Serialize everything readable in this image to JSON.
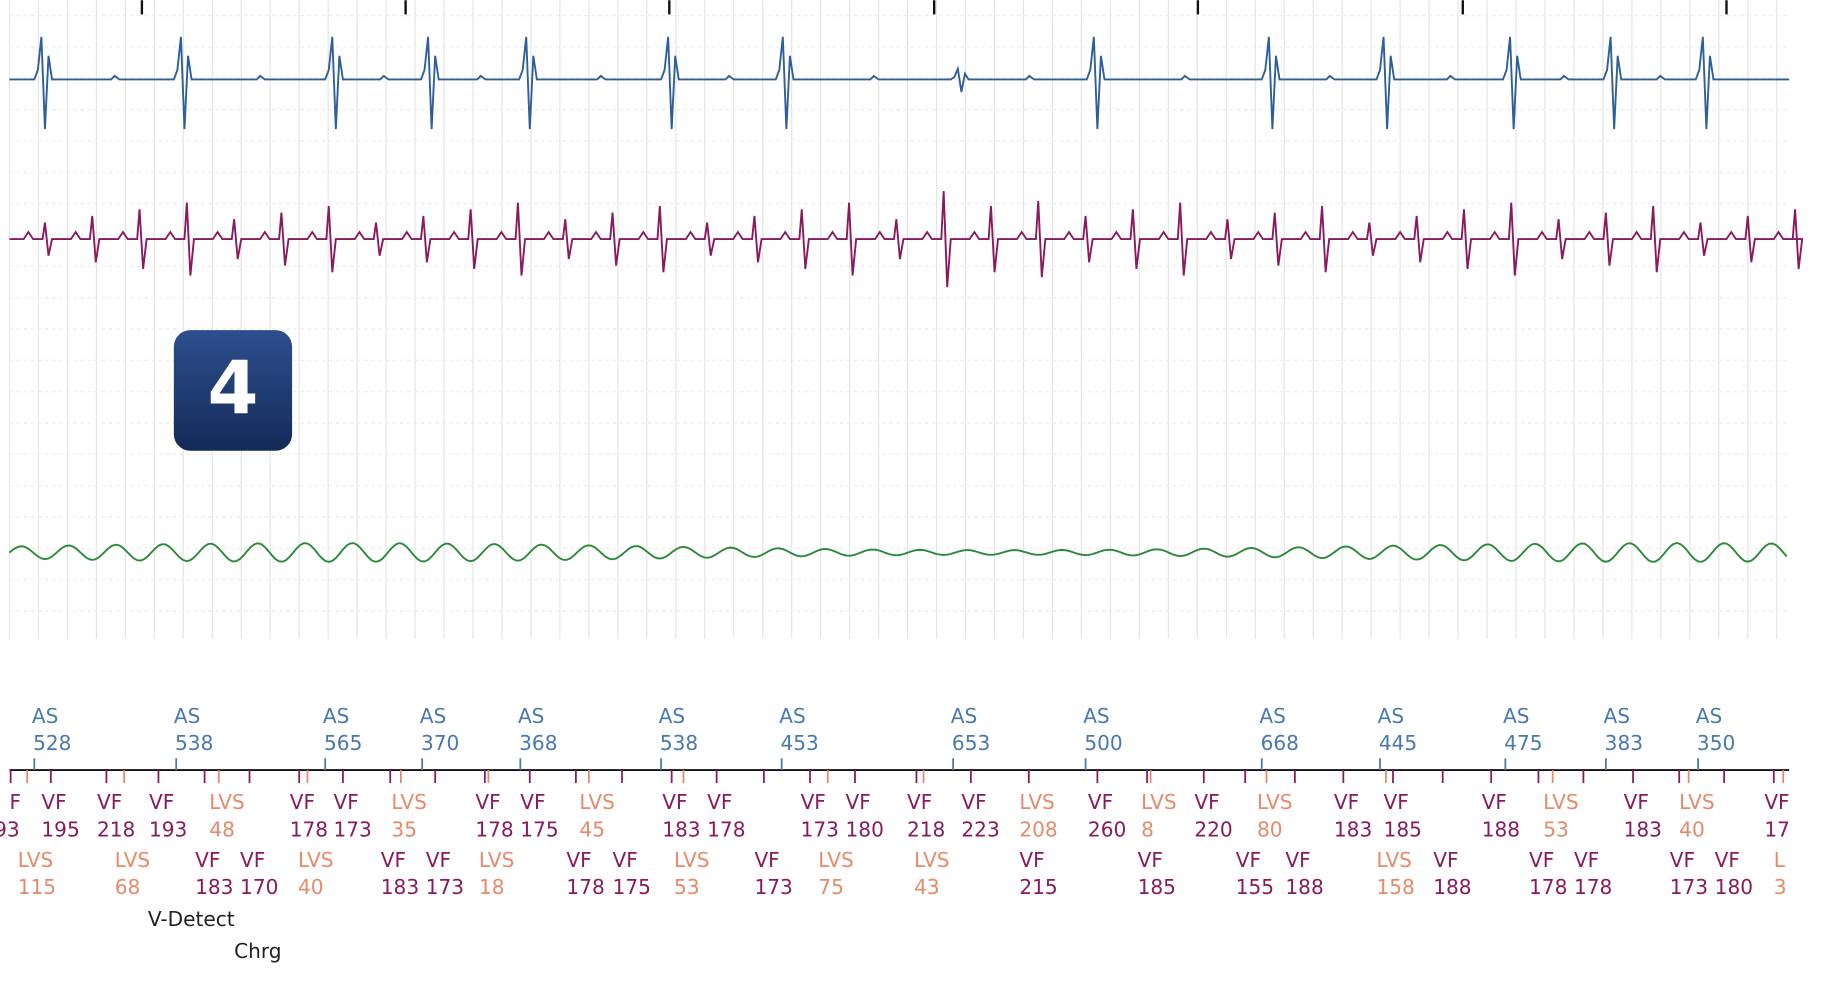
{
  "badge": "4",
  "atrial_markers": [
    {
      "label": "AS",
      "value": "528"
    },
    {
      "label": "AS",
      "value": "538"
    },
    {
      "label": "AS",
      "value": "565"
    },
    {
      "label": "AS",
      "value": "370"
    },
    {
      "label": "AS",
      "value": "368"
    },
    {
      "label": "AS",
      "value": "538"
    },
    {
      "label": "AS",
      "value": "453"
    },
    {
      "label": "AS",
      "value": "653"
    },
    {
      "label": "AS",
      "value": "500"
    },
    {
      "label": "AS",
      "value": "668"
    },
    {
      "label": "AS",
      "value": "445"
    },
    {
      "label": "AS",
      "value": "475"
    },
    {
      "label": "AS",
      "value": "383"
    },
    {
      "label": "AS",
      "value": "350"
    }
  ],
  "ventricular_markers_row1": [
    {
      "label": "F",
      "value": "93"
    },
    {
      "label": "VF",
      "value": "195"
    },
    {
      "label": "VF",
      "value": "218"
    },
    {
      "label": "VF",
      "value": "193"
    },
    {
      "label": "LVS",
      "value": "48"
    },
    {
      "label": "VF",
      "value": "178"
    },
    {
      "label": "VF",
      "value": "173"
    },
    {
      "label": "LVS",
      "value": "35"
    },
    {
      "label": "VF",
      "value": "178"
    },
    {
      "label": "VF",
      "value": "175"
    },
    {
      "label": "LVS",
      "value": "45"
    },
    {
      "label": "VF",
      "value": "183"
    },
    {
      "label": "VF",
      "value": "178"
    },
    {
      "label": "VF",
      "value": "173"
    },
    {
      "label": "VF",
      "value": "180"
    },
    {
      "label": "VF",
      "value": "218"
    },
    {
      "label": "VF",
      "value": "223"
    },
    {
      "label": "LVS",
      "value": "208"
    },
    {
      "label": "VF",
      "value": "260"
    },
    {
      "label": "LVS",
      "value": "8"
    },
    {
      "label": "VF",
      "value": "220"
    },
    {
      "label": "LVS",
      "value": "80"
    },
    {
      "label": "VF",
      "value": "183"
    },
    {
      "label": "VF",
      "value": "185"
    },
    {
      "label": "VF",
      "value": "188"
    },
    {
      "label": "LVS",
      "value": "53"
    },
    {
      "label": "VF",
      "value": "183"
    },
    {
      "label": "LVS",
      "value": "40"
    },
    {
      "label": "VF",
      "value": "17"
    }
  ],
  "ventricular_markers_row2": [
    {
      "label": "LVS",
      "value": "115"
    },
    {
      "label": "LVS",
      "value": "68"
    },
    {
      "label": "VF",
      "value": "183"
    },
    {
      "label": "VF",
      "value": "170"
    },
    {
      "label": "LVS",
      "value": "40"
    },
    {
      "label": "VF",
      "value": "183"
    },
    {
      "label": "VF",
      "value": "173"
    },
    {
      "label": "LVS",
      "value": "18"
    },
    {
      "label": "VF",
      "value": "178"
    },
    {
      "label": "VF",
      "value": "175"
    },
    {
      "label": "LVS",
      "value": "53"
    },
    {
      "label": "VF",
      "value": "173"
    },
    {
      "label": "LVS",
      "value": "75"
    },
    {
      "label": "LVS",
      "value": "43"
    },
    {
      "label": "VF",
      "value": "215"
    },
    {
      "label": "VF",
      "value": "185"
    },
    {
      "label": "VF",
      "value": "155"
    },
    {
      "label": "VF",
      "value": "188"
    },
    {
      "label": "LVS",
      "value": "158"
    },
    {
      "label": "VF",
      "value": "188"
    },
    {
      "label": "VF",
      "value": "178"
    },
    {
      "label": "VF",
      "value": "178"
    },
    {
      "label": "VF",
      "value": "173"
    },
    {
      "label": "VF",
      "value": "180"
    },
    {
      "label": "L",
      "value": "3"
    }
  ],
  "annotations": {
    "v_detect": "V-Detect",
    "charge": "Chrg"
  }
}
